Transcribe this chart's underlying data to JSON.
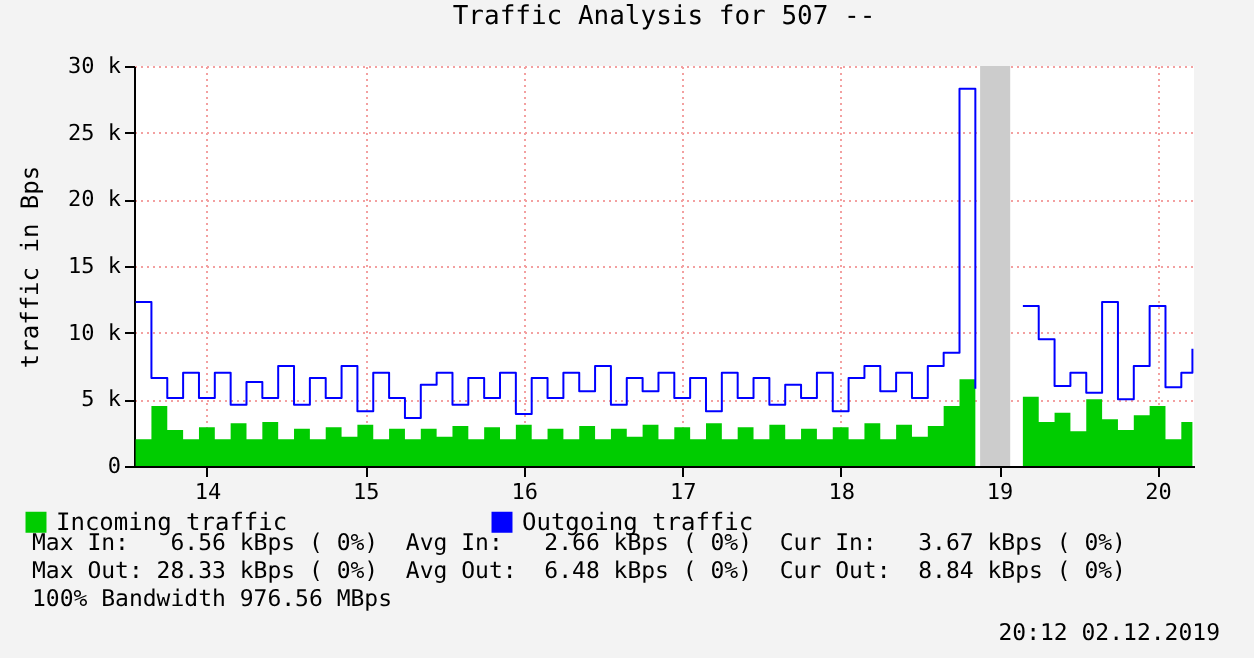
{
  "chart_data": {
    "type": "area",
    "title": "Traffic Analysis for 507 --",
    "ylabel": "traffic in Bps",
    "x": [
      13.55,
      13.65,
      13.75,
      13.85,
      13.95,
      14.05,
      14.15,
      14.25,
      14.35,
      14.45,
      14.55,
      14.65,
      14.75,
      14.85,
      14.95,
      15.05,
      15.15,
      15.25,
      15.35,
      15.45,
      15.55,
      15.65,
      15.75,
      15.85,
      15.95,
      16.05,
      16.15,
      16.25,
      16.35,
      16.45,
      16.55,
      16.65,
      16.75,
      16.85,
      16.95,
      17.05,
      17.15,
      17.25,
      17.35,
      17.45,
      17.55,
      17.65,
      17.75,
      17.85,
      17.95,
      18.05,
      18.15,
      18.25,
      18.35,
      18.45,
      18.55,
      18.65,
      18.75,
      18.85,
      18.95,
      19.05,
      19.15,
      19.25,
      19.35,
      19.45,
      19.55,
      19.65,
      19.75,
      19.85,
      19.95,
      20.05,
      20.15,
      20.22
    ],
    "series": [
      {
        "name": "Incoming traffic",
        "type": "area",
        "color": "#00cc00",
        "values": [
          2000,
          4500,
          2700,
          2000,
          2900,
          2000,
          3200,
          2000,
          3300,
          2000,
          2800,
          2000,
          2900,
          2200,
          3100,
          2000,
          2800,
          2000,
          2800,
          2200,
          3000,
          2000,
          2900,
          2000,
          3100,
          2000,
          2800,
          2000,
          3000,
          2000,
          2800,
          2200,
          3100,
          2000,
          2900,
          2000,
          3200,
          2000,
          2900,
          2000,
          3100,
          2000,
          2800,
          2000,
          2900,
          2000,
          3200,
          2000,
          3100,
          2200,
          3000,
          4500,
          6500,
          2400,
          null,
          null,
          5200,
          3300,
          4000,
          2600,
          5000,
          3500,
          2700,
          3800,
          4500,
          2000,
          3300,
          3700
        ]
      },
      {
        "name": "Outgoing traffic",
        "type": "step",
        "color": "#0000ff",
        "values": [
          12300,
          6600,
          5100,
          7000,
          5100,
          7000,
          4600,
          6300,
          5100,
          7500,
          4600,
          6600,
          5100,
          7500,
          4100,
          7000,
          5100,
          3600,
          6100,
          7000,
          4600,
          6600,
          5100,
          7000,
          3900,
          6600,
          5100,
          7000,
          5600,
          7500,
          4600,
          6600,
          5600,
          7000,
          5100,
          6600,
          4100,
          7000,
          5100,
          6600,
          4600,
          6100,
          5100,
          7000,
          4100,
          6600,
          7500,
          5600,
          7000,
          5100,
          7500,
          8500,
          28300,
          5800,
          null,
          null,
          12000,
          9500,
          6000,
          7000,
          5500,
          12300,
          5000,
          7500,
          12000,
          5900,
          7000,
          8800
        ]
      }
    ],
    "xlim": [
      13.54,
      20.23
    ],
    "xticks": [
      14,
      15,
      16,
      17,
      18,
      19,
      20
    ],
    "ylim": [
      0,
      30000
    ],
    "yticks": [
      0,
      {
        "value": 5000,
        "label": "5 k"
      },
      {
        "value": 10000,
        "label": "10 k"
      },
      {
        "value": 15000,
        "label": "15 k"
      },
      {
        "value": 20000,
        "label": "20 k"
      },
      {
        "value": 25000,
        "label": "25 k"
      },
      {
        "value": 30000,
        "label": "30 k"
      }
    ],
    "bands": [
      {
        "axis": "x",
        "from": 18.88,
        "to": 19.07,
        "color": "#cccccc"
      }
    ],
    "grid": true,
    "legend": "bottom",
    "annotations": [
      "Max In:   6.56 kBps ( 0%)  Avg In:   2.66 kBps ( 0%)  Cur In:   3.67 kBps ( 0%)",
      "Max Out: 28.33 kBps ( 0%)  Avg Out:  6.48 kBps ( 0%)  Cur Out:  8.84 kBps ( 0%)",
      "100% Bandwidth 976.56 MBps",
      "20:12 02.12.2019"
    ]
  }
}
